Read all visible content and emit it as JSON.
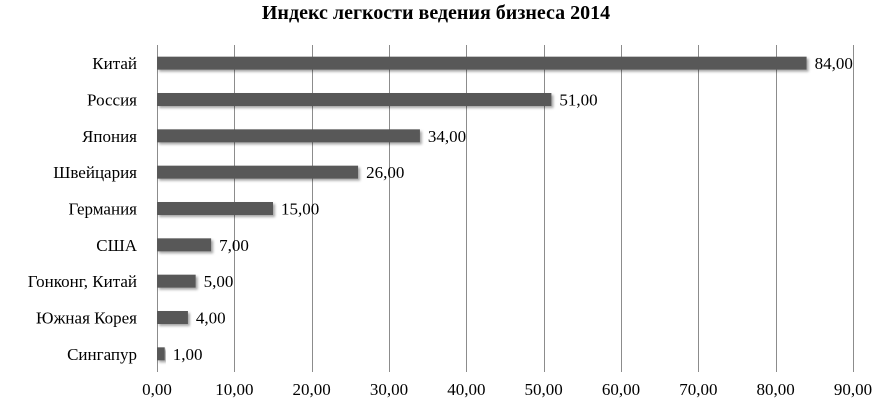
{
  "chart_data": {
    "type": "bar",
    "orientation": "horizontal",
    "title": "Индекс легкости ведения бизнеса 2014",
    "categories": [
      "Китай",
      "Россия",
      "Япония",
      "Швейцария",
      "Германия",
      "США",
      "Гонконг, Китай",
      "Южная Корея",
      "Сингапур"
    ],
    "values": [
      84,
      51,
      34,
      26,
      15,
      7,
      5,
      4,
      1
    ],
    "value_labels": [
      "84,00",
      "51,00",
      "34,00",
      "26,00",
      "15,00",
      "7,00",
      "5,00",
      "4,00",
      "1,00"
    ],
    "xlim": [
      0,
      90
    ],
    "x_ticks": [
      0,
      10,
      20,
      30,
      40,
      50,
      60,
      70,
      80,
      90
    ],
    "x_tick_labels": [
      "0,00",
      "10,00",
      "20,00",
      "30,00",
      "40,00",
      "50,00",
      "60,00",
      "70,00",
      "80,00",
      "90,00"
    ],
    "xlabel": "",
    "ylabel": "",
    "grid": true,
    "legend": false,
    "bar_color": "#595959",
    "grid_color": "#8c8c8c"
  }
}
